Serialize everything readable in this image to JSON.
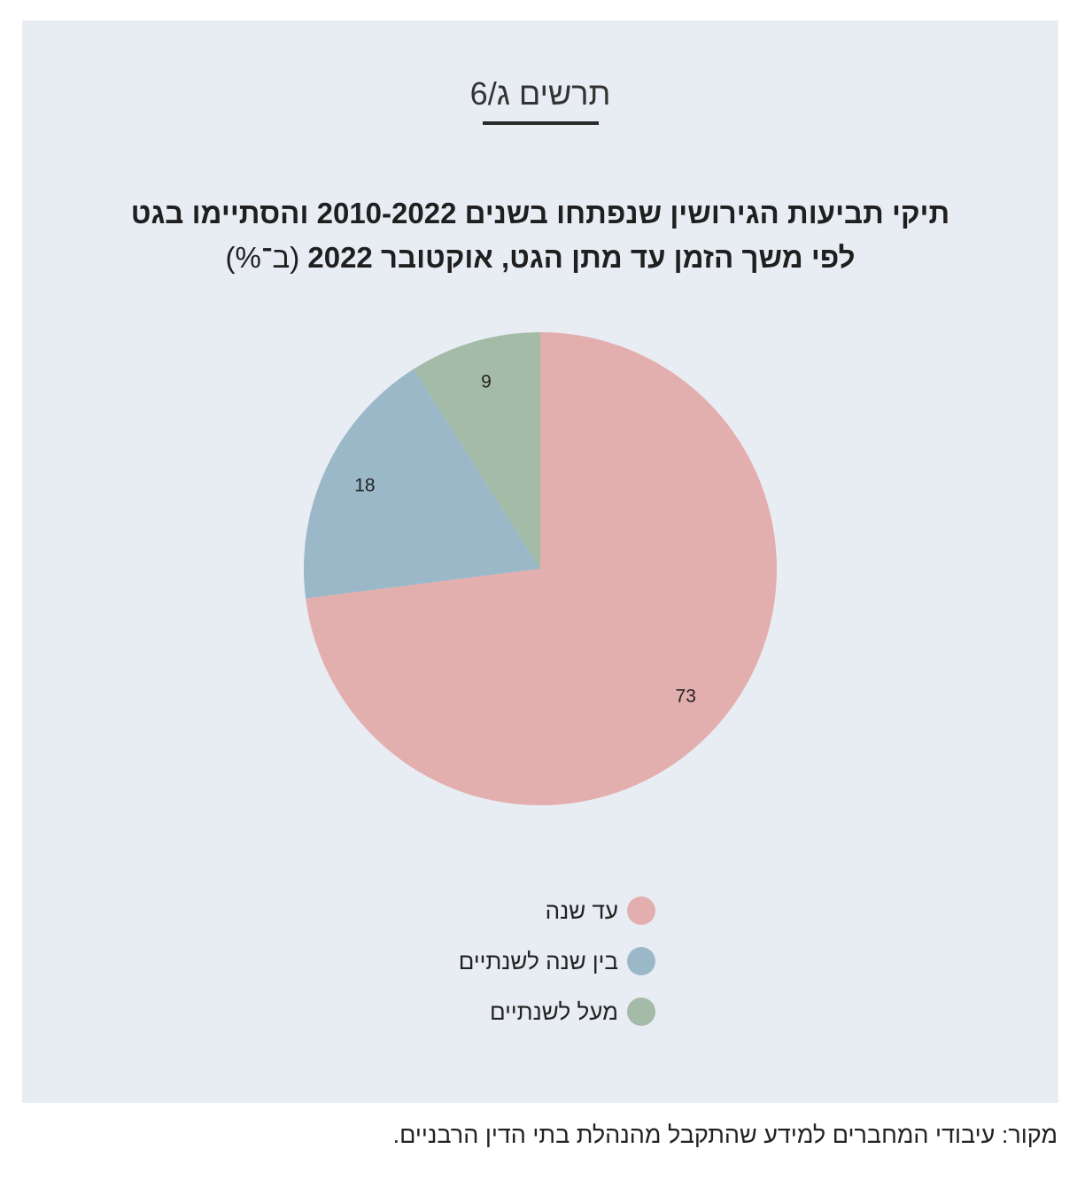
{
  "figure": {
    "label": "תרשים ג/6"
  },
  "source": {
    "text": "מקור: עיבודי המחברים למידע שהתקבל מהנהלת בתי הדין הרבניים."
  },
  "chart_data": {
    "type": "pie",
    "title_line1": "תיקי תביעות הגירושין שנפתחו בשנים 2010-2022 והסתיימו בגט",
    "title_line2": "לפי משך הזמן עד מתן הגט, אוקטובר 2022",
    "title_unit": "(ב־%)",
    "start": "top",
    "direction": "clockwise",
    "slices": [
      {
        "label": "עד שנה",
        "value": 73,
        "value_text": "73",
        "color": "#e3aeae"
      },
      {
        "label": "בין שנה לשנתיים",
        "value": 18,
        "value_text": "18",
        "color": "#9bb8c9"
      },
      {
        "label": "מעל לשנתיים",
        "value": 9,
        "value_text": "9",
        "color": "#a4bba8"
      }
    ],
    "legend_position": "bottom"
  }
}
